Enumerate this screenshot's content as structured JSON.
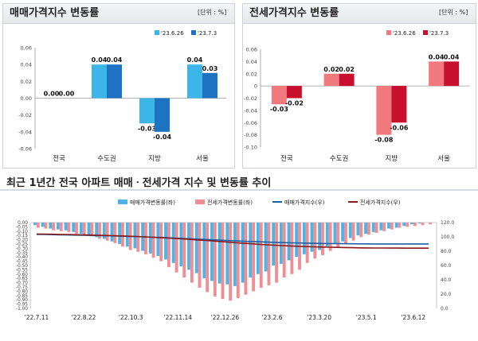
{
  "panels": {
    "sale": {
      "title": "매매가격지수 변동률",
      "unit": "[단위 : %]"
    },
    "jeonse": {
      "title": "전세가격지수 변동률",
      "unit": "[단위 : %]"
    }
  },
  "trend_section_title": "최근 1년간 전국 아파트 매매ㆍ전세가격 지수 및 변동률 추이",
  "colors": {
    "sale_prev": "#3cb6e8",
    "sale_cur": "#1e72c2",
    "jeonse_prev": "#f2797d",
    "jeonse_cur": "#c8102e",
    "sale_bar": "#4fb4e4",
    "jeonse_bar": "#ef8f95",
    "sale_line": "#1f5fa3",
    "jeonse_line": "#8b1a1a"
  },
  "chart_data": [
    {
      "type": "bar",
      "title": "매매가격지수 변동률",
      "categories": [
        "전국",
        "수도권",
        "지방",
        "서울"
      ],
      "series": [
        {
          "name": "'23.6.26",
          "values": [
            0.0,
            0.04,
            -0.03,
            0.04
          ],
          "labels": [
            "0.00",
            "0.04",
            "-0.03",
            "0.04"
          ]
        },
        {
          "name": "'23.7.3",
          "values": [
            0.0,
            0.04,
            -0.04,
            0.03
          ],
          "labels": [
            "0.00",
            "0.04",
            "-0.04",
            "0.03"
          ]
        }
      ],
      "ylim": [
        -0.06,
        0.06
      ],
      "yticks": [
        "0.06",
        "0.04",
        "0.02",
        "0.00",
        "-0.02",
        "-0.04",
        "-0.06"
      ],
      "legend": "top-right"
    },
    {
      "type": "bar",
      "title": "전세가격지수 변동률",
      "categories": [
        "전국",
        "수도권",
        "지방",
        "서울"
      ],
      "series": [
        {
          "name": "'23.6.26",
          "values": [
            -0.03,
            0.02,
            -0.08,
            0.04
          ],
          "labels": [
            "-0.03",
            "0.02",
            "-0.08",
            "0.04"
          ]
        },
        {
          "name": "'23.7.3",
          "values": [
            -0.02,
            0.02,
            -0.06,
            0.04
          ],
          "labels": [
            "-0.02",
            "0.02",
            "-0.06",
            "0.04"
          ]
        }
      ],
      "ylim": [
        -0.1,
        0.06
      ],
      "yticks": [
        "0.06",
        "0.04",
        "0.02",
        "0",
        "-0.02",
        "-0.04",
        "-0.06",
        "-0.08",
        "-0.10"
      ],
      "legend": "top-right"
    },
    {
      "type": "bar",
      "subtype": "bar-line-combo",
      "title": "최근 1년간 전국 아파트 매매ㆍ전세가격 지수 및 변동률 추이",
      "x_labels": [
        "'22.7.11",
        "'22.8.22",
        "'22.10.3",
        "'22.11.14",
        "'22.12.26",
        "'23.2.6",
        "'23.3.20",
        "'23.5.1",
        "'23.6.12"
      ],
      "y_left_ticks": [
        "0.00",
        "-0.05",
        "-0.10",
        "-0.15",
        "-0.20",
        "-0.25",
        "-0.30",
        "-0.35",
        "-0.40",
        "-0.45",
        "-0.50",
        "-0.55",
        "-0.60",
        "-0.65",
        "-0.70",
        "-0.75",
        "-0.80",
        "-0.85",
        "-0.90",
        "-0.95",
        "-1.00"
      ],
      "y_right_ticks": [
        "120.0",
        "100.0",
        "80.0",
        "60.0",
        "40.0",
        "20.0",
        "0.0"
      ],
      "ylim_left": [
        -1.0,
        0.0
      ],
      "ylim_right": [
        0,
        120
      ],
      "legend": "top",
      "series": [
        {
          "name": "매매가격변동률(좌)",
          "kind": "bar",
          "values": [
            -0.03,
            -0.05,
            -0.07,
            -0.08,
            -0.09,
            -0.11,
            -0.13,
            -0.15,
            -0.17,
            -0.19,
            -0.22,
            -0.25,
            -0.28,
            -0.3,
            -0.33,
            -0.36,
            -0.39,
            -0.43,
            -0.47,
            -0.51,
            -0.55,
            -0.59,
            -0.65,
            -0.68,
            -0.71,
            -0.72,
            -0.74,
            -0.7,
            -0.64,
            -0.6,
            -0.57,
            -0.5,
            -0.48,
            -0.44,
            -0.4,
            -0.37,
            -0.34,
            -0.32,
            -0.28,
            -0.25,
            -0.22,
            -0.18,
            -0.15,
            -0.13,
            -0.11,
            -0.09,
            -0.07,
            -0.06,
            -0.04,
            -0.02,
            -0.01,
            0.0
          ]
        },
        {
          "name": "전세가격변동률(좌)",
          "kind": "bar",
          "values": [
            -0.06,
            -0.07,
            -0.09,
            -0.1,
            -0.11,
            -0.13,
            -0.14,
            -0.16,
            -0.19,
            -0.21,
            -0.24,
            -0.28,
            -0.32,
            -0.34,
            -0.37,
            -0.41,
            -0.45,
            -0.52,
            -0.58,
            -0.64,
            -0.7,
            -0.76,
            -0.81,
            -0.86,
            -0.89,
            -0.91,
            -0.88,
            -0.84,
            -0.8,
            -0.76,
            -0.73,
            -0.7,
            -0.64,
            -0.6,
            -0.55,
            -0.47,
            -0.42,
            -0.38,
            -0.33,
            -0.29,
            -0.25,
            -0.21,
            -0.17,
            -0.14,
            -0.12,
            -0.1,
            -0.08,
            -0.06,
            -0.05,
            -0.04,
            -0.03,
            -0.02
          ]
        },
        {
          "name": "매매가격지수(우)",
          "kind": "line",
          "values": [
            103.5,
            103.3,
            103.1,
            102.9,
            102.7,
            102.5,
            102.3,
            102.0,
            101.8,
            101.6,
            101.3,
            101.0,
            100.7,
            100.4,
            100.0,
            99.6,
            99.2,
            98.8,
            98.3,
            97.8,
            97.3,
            96.8,
            96.3,
            95.8,
            95.3,
            94.8,
            94.3,
            93.9,
            93.5,
            93.1,
            92.7,
            92.3,
            92.0,
            91.7,
            91.4,
            91.2,
            91.0,
            90.8,
            90.6,
            90.5,
            90.4,
            90.3,
            90.2,
            90.2,
            90.1,
            90.1,
            90.1,
            90.1,
            90.1,
            90.1,
            90.1,
            90.1
          ]
        },
        {
          "name": "전세가격지수(우)",
          "kind": "line",
          "values": [
            104.0,
            103.9,
            103.7,
            103.5,
            103.3,
            103.1,
            102.9,
            102.6,
            102.3,
            102.0,
            101.7,
            101.3,
            100.9,
            100.5,
            100.0,
            99.5,
            99.0,
            98.4,
            97.8,
            97.1,
            96.4,
            95.7,
            95.0,
            94.2,
            93.4,
            92.6,
            91.8,
            91.0,
            90.3,
            89.6,
            88.9,
            88.3,
            87.8,
            87.3,
            86.9,
            86.5,
            86.1,
            85.8,
            85.5,
            85.3,
            85.1,
            84.9,
            84.7,
            84.6,
            84.5,
            84.4,
            84.3,
            84.3,
            84.2,
            84.2,
            84.2,
            84.2
          ]
        }
      ]
    }
  ]
}
